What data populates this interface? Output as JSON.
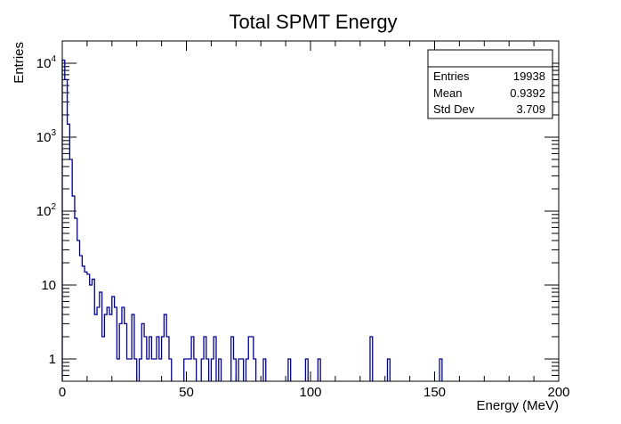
{
  "chart_data": {
    "type": "histogram",
    "title": "Total SPMT Energy",
    "xlabel": "Energy (MeV)",
    "ylabel": "Entries",
    "xlim": [
      0,
      200
    ],
    "ylim": [
      0.5,
      20000
    ],
    "yscale": "log",
    "grid": false,
    "bin_width": 1,
    "line_color": "#000099",
    "x_ticks": [
      "0",
      "50",
      "100",
      "150",
      "200"
    ],
    "y_ticks": [
      {
        "value": 1,
        "base": "1",
        "exp": ""
      },
      {
        "value": 10,
        "base": "10",
        "exp": ""
      },
      {
        "value": 100,
        "base": "10",
        "exp": "2"
      },
      {
        "value": 1000,
        "base": "10",
        "exp": "3"
      },
      {
        "value": 10000,
        "base": "10",
        "exp": "4"
      }
    ],
    "bins": [
      {
        "x": 0,
        "y": 11000
      },
      {
        "x": 1,
        "y": 6000
      },
      {
        "x": 2,
        "y": 1500
      },
      {
        "x": 3,
        "y": 500
      },
      {
        "x": 4,
        "y": 160
      },
      {
        "x": 5,
        "y": 80
      },
      {
        "x": 6,
        "y": 40
      },
      {
        "x": 7,
        "y": 25
      },
      {
        "x": 8,
        "y": 18
      },
      {
        "x": 9,
        "y": 15
      },
      {
        "x": 10,
        "y": 14
      },
      {
        "x": 11,
        "y": 10
      },
      {
        "x": 12,
        "y": 12
      },
      {
        "x": 13,
        "y": 4
      },
      {
        "x": 14,
        "y": 5
      },
      {
        "x": 15,
        "y": 8
      },
      {
        "x": 16,
        "y": 2
      },
      {
        "x": 17,
        "y": 4
      },
      {
        "x": 18,
        "y": 5
      },
      {
        "x": 19,
        "y": 4
      },
      {
        "x": 20,
        "y": 7
      },
      {
        "x": 21,
        "y": 5
      },
      {
        "x": 22,
        "y": 1
      },
      {
        "x": 23,
        "y": 3
      },
      {
        "x": 24,
        "y": 5
      },
      {
        "x": 25,
        "y": 3
      },
      {
        "x": 26,
        "y": 1
      },
      {
        "x": 27,
        "y": 1
      },
      {
        "x": 28,
        "y": 4
      },
      {
        "x": 29,
        "y": 1
      },
      {
        "x": 31,
        "y": 1
      },
      {
        "x": 32,
        "y": 3
      },
      {
        "x": 33,
        "y": 2
      },
      {
        "x": 34,
        "y": 1
      },
      {
        "x": 35,
        "y": 2
      },
      {
        "x": 36,
        "y": 1
      },
      {
        "x": 37,
        "y": 1
      },
      {
        "x": 38,
        "y": 2
      },
      {
        "x": 39,
        "y": 1
      },
      {
        "x": 40,
        "y": 2
      },
      {
        "x": 41,
        "y": 4
      },
      {
        "x": 42,
        "y": 2
      },
      {
        "x": 43,
        "y": 1
      },
      {
        "x": 49,
        "y": 1
      },
      {
        "x": 50,
        "y": 1
      },
      {
        "x": 51,
        "y": 1
      },
      {
        "x": 52,
        "y": 2
      },
      {
        "x": 53,
        "y": 1
      },
      {
        "x": 56,
        "y": 1
      },
      {
        "x": 57,
        "y": 2
      },
      {
        "x": 58,
        "y": 1
      },
      {
        "x": 60,
        "y": 1
      },
      {
        "x": 61,
        "y": 2
      },
      {
        "x": 63,
        "y": 1
      },
      {
        "x": 68,
        "y": 2
      },
      {
        "x": 69,
        "y": 1
      },
      {
        "x": 71,
        "y": 1
      },
      {
        "x": 72,
        "y": 1
      },
      {
        "x": 74,
        "y": 1
      },
      {
        "x": 75,
        "y": 2
      },
      {
        "x": 76,
        "y": 2
      },
      {
        "x": 77,
        "y": 1
      },
      {
        "x": 81,
        "y": 1
      },
      {
        "x": 91,
        "y": 1
      },
      {
        "x": 98,
        "y": 1
      },
      {
        "x": 103,
        "y": 1
      },
      {
        "x": 124,
        "y": 2
      },
      {
        "x": 131,
        "y": 1
      },
      {
        "x": 152,
        "y": 1
      }
    ]
  },
  "stats": {
    "rows": [
      {
        "label": "Entries",
        "value": "19938"
      },
      {
        "label": "Mean",
        "value": "0.9392"
      },
      {
        "label": "Std Dev",
        "value": "3.709"
      }
    ]
  }
}
